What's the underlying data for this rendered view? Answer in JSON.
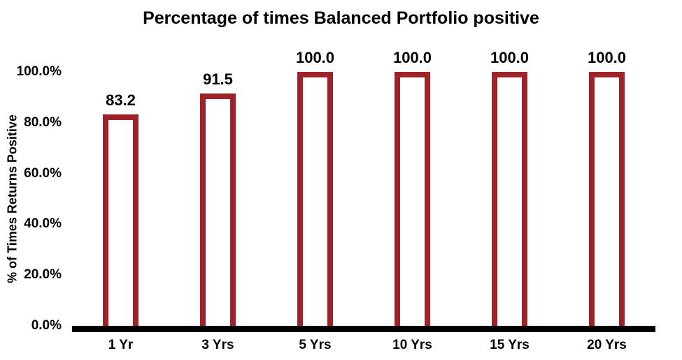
{
  "chart_data": {
    "type": "bar",
    "title": "Percentage of times Balanced Portfolio positive",
    "xlabel": "",
    "ylabel": "% of Times Returns Positive",
    "categories": [
      "1 Yr",
      "3 Yrs",
      "5 Yrs",
      "10 Yrs",
      "15 Yrs",
      "20 Yrs"
    ],
    "values": [
      83.2,
      91.5,
      100.0,
      100.0,
      100.0,
      100.0
    ],
    "value_labels": [
      "83.2",
      "91.5",
      "100.0",
      "100.0",
      "100.0",
      "100.0"
    ],
    "yticks": [
      "0.0%",
      "20.0%",
      "40.0%",
      "60.0%",
      "80.0%",
      "100.0%"
    ],
    "ylim": [
      0,
      100
    ],
    "grid": false,
    "legend": "none",
    "colors": {
      "bar_fill": "#ffffff",
      "bar_border": "#9e2228",
      "axis_line": "#000000",
      "text": "#000000",
      "background": "#ffffff"
    }
  }
}
